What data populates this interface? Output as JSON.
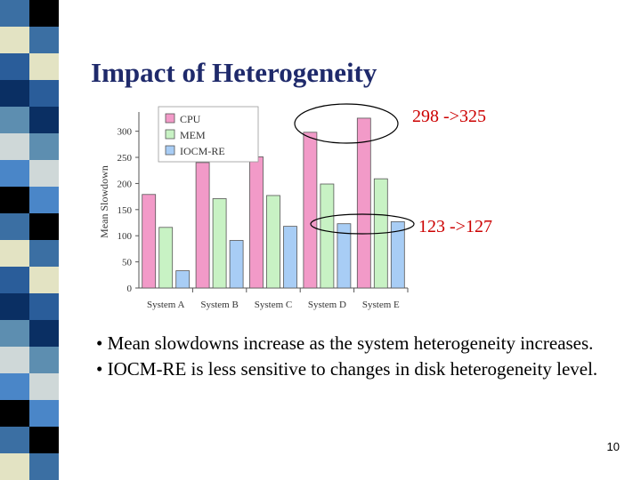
{
  "slide": {
    "title": "Impact of Heterogeneity",
    "annotations": [
      "298 ->325",
      "123 ->127"
    ],
    "bullets": [
      "• Mean slowdowns increase as the system heterogeneity increases.",
      "• IOCM-RE is less sensitive to changes in disk heterogeneity level."
    ],
    "page_number": "10"
  },
  "colors": {
    "stripe": [
      "#3b6fa3",
      "#0a2f63",
      "#4a86c8",
      "#e3e3c3",
      "#5d8eb0",
      "#000000",
      "#2a5d9a",
      "#cfd8d8"
    ],
    "annotation": "#cc0000",
    "title": "#1f2a6b"
  },
  "chart_data": {
    "type": "bar",
    "categories": [
      "System A",
      "System B",
      "System C",
      "System D",
      "System E"
    ],
    "series": [
      {
        "name": "CPU",
        "color": "#f29ac8",
        "values": [
          179,
          240,
          251,
          298,
          325
        ]
      },
      {
        "name": "MEM",
        "color": "#c8f2c4",
        "values": [
          116,
          171,
          177,
          199,
          209
        ]
      },
      {
        "name": "IOCM-RE",
        "color": "#a8cdf5",
        "values": [
          33,
          91,
          118,
          123,
          127
        ]
      }
    ],
    "ylabel": "Mean Slowdown",
    "xlabel": "",
    "ylim": [
      0,
      330
    ],
    "yticks": [
      0,
      50,
      100,
      150,
      200,
      250,
      300
    ],
    "legend": "top-left",
    "grid": false
  }
}
